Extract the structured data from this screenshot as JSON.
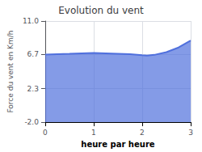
{
  "chart_data": {
    "type": "area",
    "title": "Evolution du vent",
    "xlabel": "heure par heure",
    "ylabel": "Force du vent en Km/h",
    "x": [
      0,
      0.25,
      0.5,
      0.75,
      1.0,
      1.25,
      1.5,
      1.75,
      2.0,
      2.1,
      2.25,
      2.5,
      2.75,
      3.0
    ],
    "values": [
      6.7,
      6.75,
      6.78,
      6.85,
      6.9,
      6.85,
      6.8,
      6.75,
      6.6,
      6.55,
      6.65,
      7.0,
      7.6,
      8.5
    ],
    "xlim": [
      0,
      3.0
    ],
    "xticks": [
      0,
      1,
      2,
      3
    ],
    "ylim": [
      -2.0,
      11.0
    ],
    "yticks": [
      {
        "value": -2.0,
        "label": "-2.0"
      },
      2.3,
      6.7,
      {
        "value": 11.0,
        "label": "11.0"
      }
    ],
    "grid": true
  }
}
